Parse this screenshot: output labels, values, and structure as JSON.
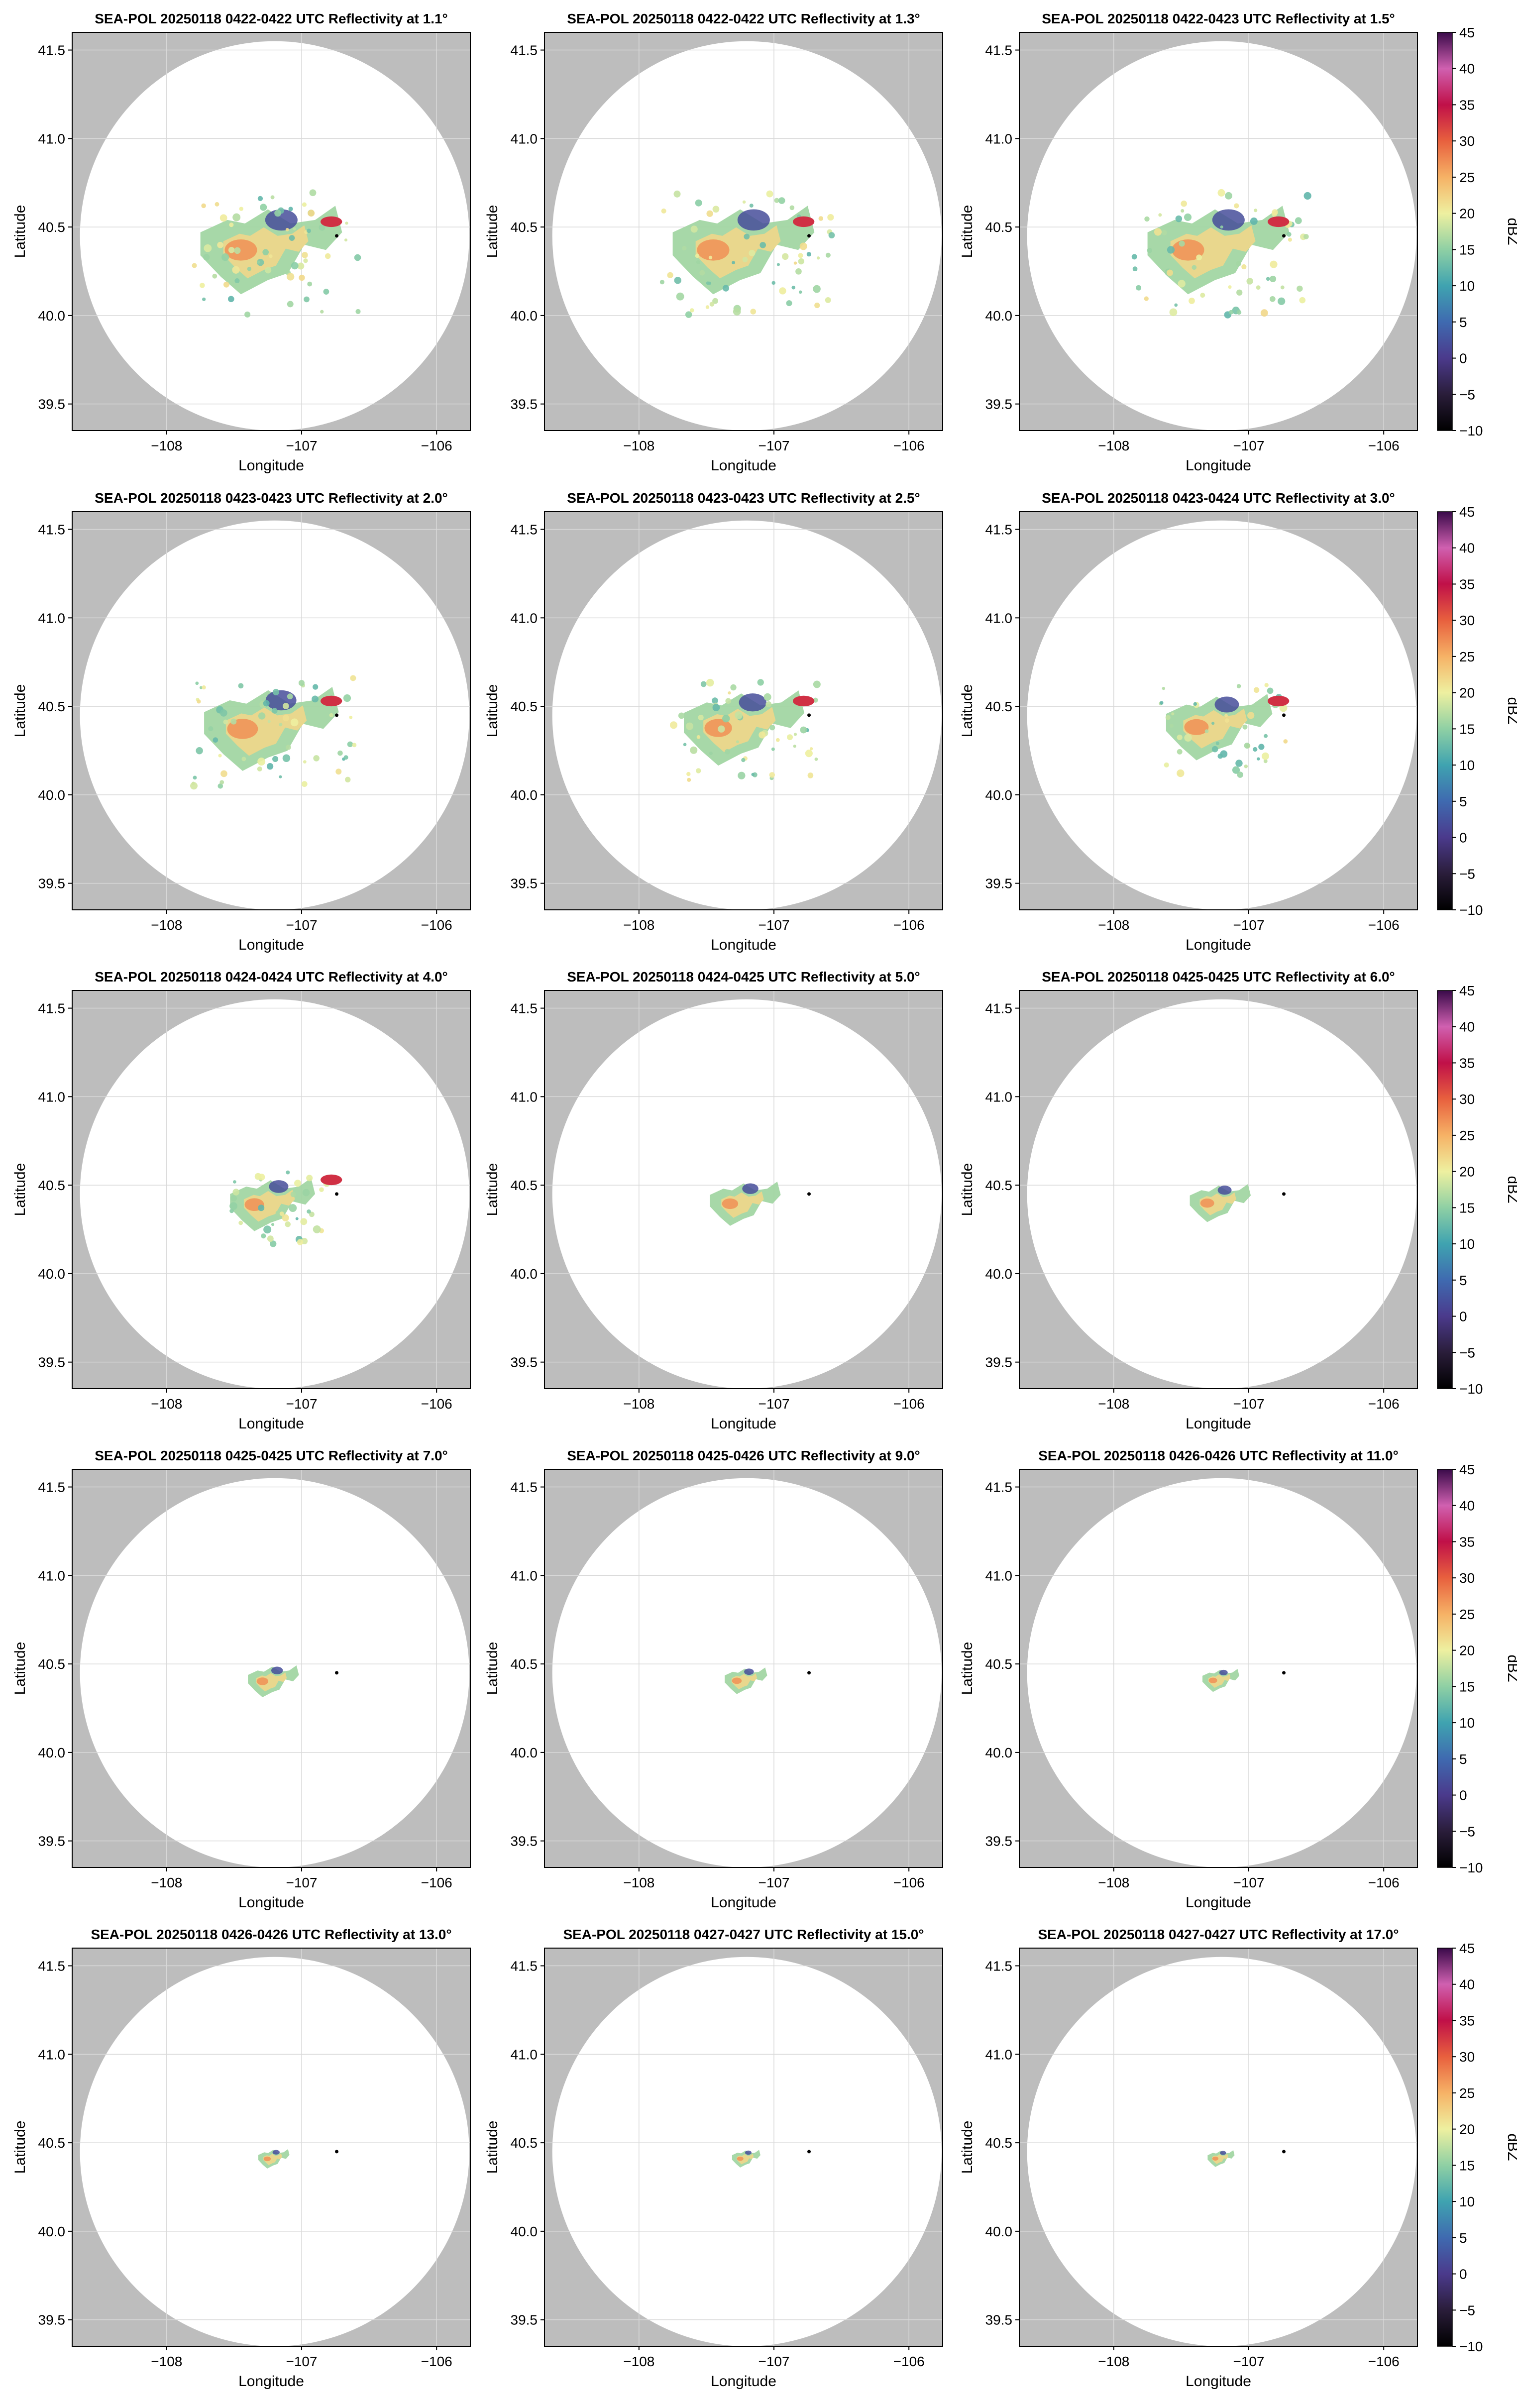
{
  "chart_data": {
    "type": "heatmap",
    "xlabel": "Longitude",
    "ylabel": "Latitude",
    "xlim": [
      -108.7,
      -105.75
    ],
    "ylim": [
      39.35,
      41.6
    ],
    "xticks": [
      -108,
      -107,
      -106
    ],
    "xtick_labels": [
      "−108",
      "−107",
      "−106"
    ],
    "yticks": [
      39.5,
      40.0,
      40.5,
      41.0,
      41.5
    ],
    "ytick_labels": [
      "39.5",
      "40.0",
      "40.5",
      "41.0",
      "41.5"
    ],
    "grid": true,
    "radar_site": {
      "lon": -106.74,
      "lat": 40.45
    },
    "range_center": {
      "lon": -107.2,
      "lat": 40.45
    },
    "range_radius_deg_lat": 1.1,
    "colorbar": {
      "label": "dBZ",
      "min": -10,
      "max": 45,
      "ticks": [
        -10,
        -5,
        0,
        5,
        10,
        15,
        20,
        25,
        30,
        35,
        40,
        45
      ],
      "tick_labels": [
        "−10",
        "−5",
        "0",
        "5",
        "10",
        "15",
        "20",
        "25",
        "30",
        "35",
        "40",
        "45"
      ],
      "stops": [
        {
          "v": -10,
          "c": "#000000"
        },
        {
          "v": -5,
          "c": "#2a1d3a"
        },
        {
          "v": 0,
          "c": "#4b3a8c"
        },
        {
          "v": 5,
          "c": "#3f6ab0"
        },
        {
          "v": 10,
          "c": "#3fa3b0"
        },
        {
          "v": 15,
          "c": "#8fd0a4"
        },
        {
          "v": 20,
          "c": "#eef0a0"
        },
        {
          "v": 25,
          "c": "#f6b266"
        },
        {
          "v": 30,
          "c": "#e8603e"
        },
        {
          "v": 35,
          "c": "#c01048"
        },
        {
          "v": 40,
          "c": "#d060b0"
        },
        {
          "v": 45,
          "c": "#3a0a4a"
        }
      ]
    },
    "panels": [
      {
        "title": "SEA-POL 20250118 0422-0422 UTC Reflectivity at 1.1°",
        "elevation_deg": 1.1,
        "echo_extent": 1.0
      },
      {
        "title": "SEA-POL 20250118 0422-0422 UTC Reflectivity at 1.3°",
        "elevation_deg": 1.3,
        "echo_extent": 1.0
      },
      {
        "title": "SEA-POL 20250118 0422-0423 UTC Reflectivity at 1.5°",
        "elevation_deg": 1.5,
        "echo_extent": 1.0
      },
      {
        "title": "SEA-POL 20250118 0423-0423 UTC Reflectivity at 2.0°",
        "elevation_deg": 2.0,
        "echo_extent": 0.95
      },
      {
        "title": "SEA-POL 20250118 0423-0423 UTC Reflectivity at 2.5°",
        "elevation_deg": 2.5,
        "echo_extent": 0.85
      },
      {
        "title": "SEA-POL 20250118 0423-0424 UTC Reflectivity at 3.0°",
        "elevation_deg": 3.0,
        "echo_extent": 0.75
      },
      {
        "title": "SEA-POL 20250118 0424-0424 UTC Reflectivity at 4.0°",
        "elevation_deg": 4.0,
        "echo_extent": 0.6
      },
      {
        "title": "SEA-POL 20250118 0424-0425 UTC Reflectivity at 5.0°",
        "elevation_deg": 5.0,
        "echo_extent": 0.5
      },
      {
        "title": "SEA-POL 20250118 0425-0425 UTC Reflectivity at 6.0°",
        "elevation_deg": 6.0,
        "echo_extent": 0.43
      },
      {
        "title": "SEA-POL 20250118 0425-0425 UTC Reflectivity at 7.0°",
        "elevation_deg": 7.0,
        "echo_extent": 0.36
      },
      {
        "title": "SEA-POL 20250118 0425-0426 UTC Reflectivity at 9.0°",
        "elevation_deg": 9.0,
        "echo_extent": 0.3
      },
      {
        "title": "SEA-POL 20250118 0426-0426 UTC Reflectivity at 11.0°",
        "elevation_deg": 11.0,
        "echo_extent": 0.26
      },
      {
        "title": "SEA-POL 20250118 0426-0426 UTC Reflectivity at 13.0°",
        "elevation_deg": 13.0,
        "echo_extent": 0.22
      },
      {
        "title": "SEA-POL 20250118 0427-0427 UTC Reflectivity at 15.0°",
        "elevation_deg": 15.0,
        "echo_extent": 0.2
      },
      {
        "title": "SEA-POL 20250118 0427-0427 UTC Reflectivity at 17.0°",
        "elevation_deg": 17.0,
        "echo_extent": 0.19
      }
    ]
  }
}
